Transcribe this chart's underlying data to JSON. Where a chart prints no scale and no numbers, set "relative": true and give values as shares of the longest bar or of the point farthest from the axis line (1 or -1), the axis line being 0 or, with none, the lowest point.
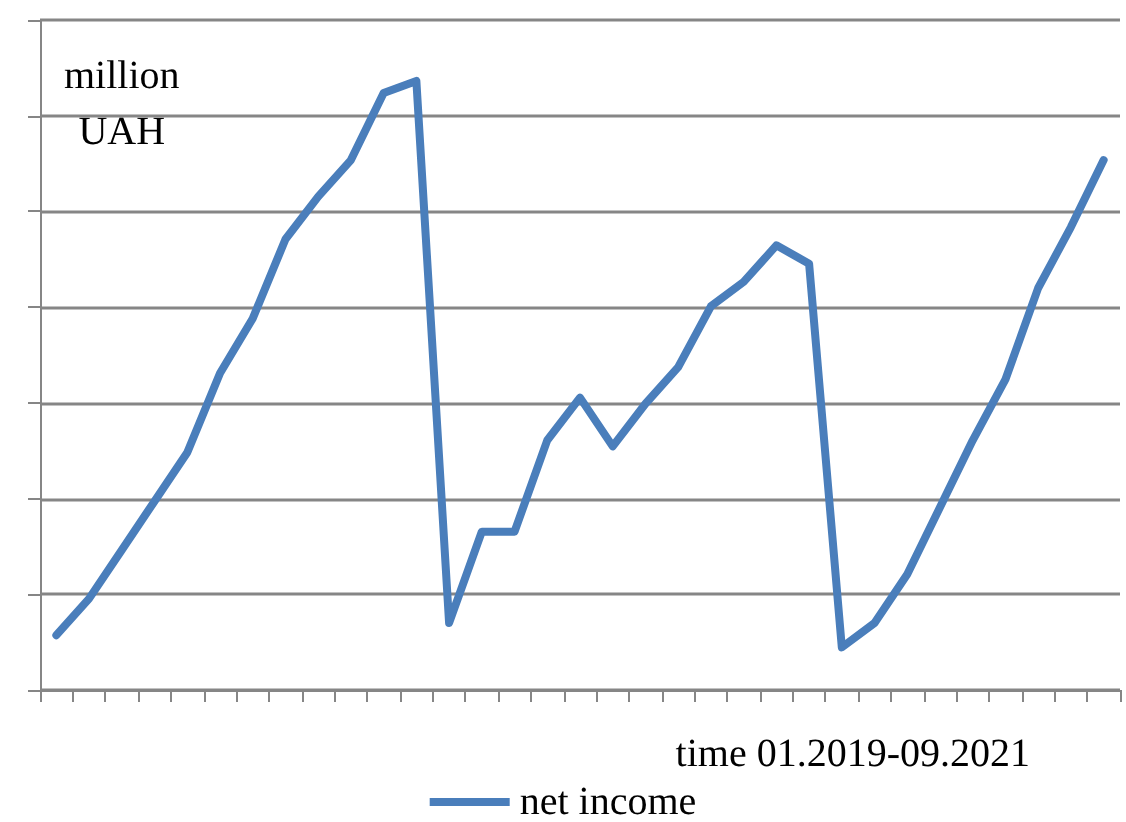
{
  "chart_data": {
    "type": "line",
    "relative": true,
    "ylabel": "million\nUAH",
    "xlabel": "time 01.2019-09.2021",
    "categories": [
      null,
      null,
      null,
      null,
      null,
      null,
      null,
      null,
      null,
      null,
      null,
      null,
      null,
      null,
      null,
      null,
      null,
      null,
      null,
      null,
      null,
      null,
      null,
      null,
      null,
      null,
      null,
      null,
      null,
      null,
      null,
      null,
      null
    ],
    "series": [
      {
        "name": "net income",
        "color": "#4a7ebb",
        "values": [
          0.09,
          0.15,
          0.23,
          0.31,
          0.39,
          0.52,
          0.61,
          0.74,
          0.81,
          0.87,
          0.98,
          1,
          0.11,
          0.26,
          0.26,
          0.41,
          0.48,
          0.4,
          0.47,
          0.53,
          0.63,
          0.67,
          0.73,
          0.7,
          0.07,
          0.11,
          0.19,
          0.3,
          0.41,
          0.51,
          0.66,
          0.76,
          0.87
        ]
      }
    ],
    "grid": "y",
    "legend": "bottom",
    "marker": "none",
    "line_style": "solid"
  }
}
